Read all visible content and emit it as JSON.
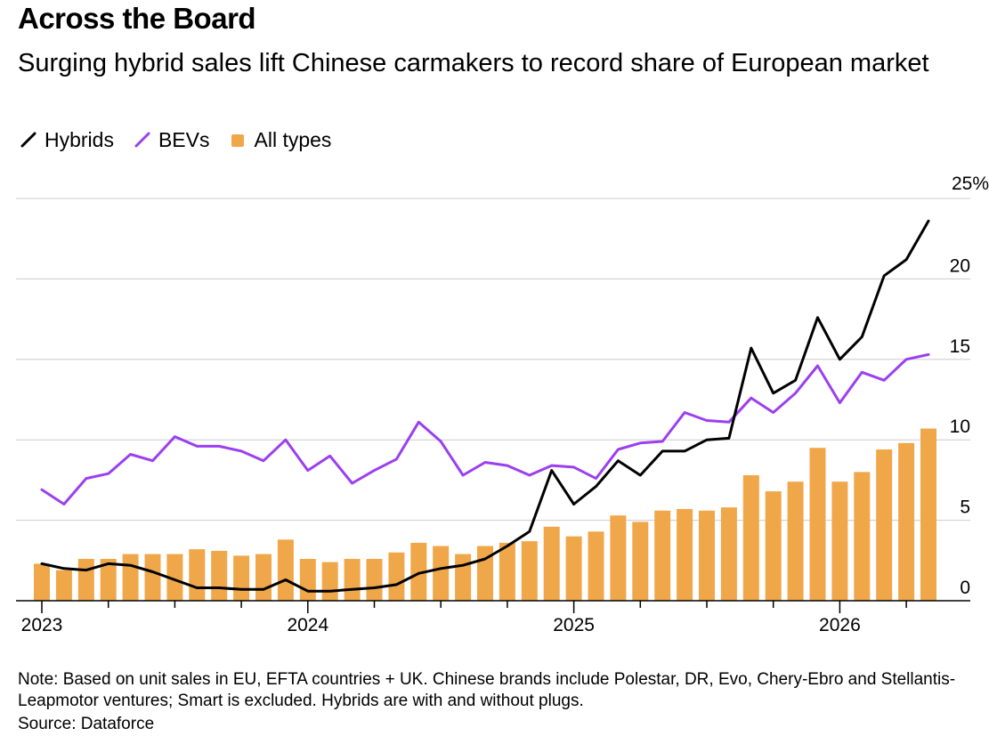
{
  "title": "Across the Board",
  "subtitle": "Surging hybrid sales lift Chinese carmakers to record share of European market",
  "legend": [
    {
      "label": "Hybrids",
      "color": "#000000",
      "shape": "line"
    },
    {
      "label": "BEVs",
      "color": "#9b3ff0",
      "shape": "line"
    },
    {
      "label": "All types",
      "color": "#f0a74a",
      "shape": "square"
    }
  ],
  "note": "Note: Based on unit sales in EU, EFTA countries + UK. Chinese brands include Polestar, DR, Evo, Chery-Ebro and Stellantis-Leapmotor ventures; Smart is excluded. Hybrids are with and without plugs.",
  "source": "Source: Dataforce",
  "chart_data": {
    "type": "bar+line",
    "x": [
      "2023-01",
      "2023-02",
      "2023-03",
      "2023-04",
      "2023-05",
      "2023-06",
      "2023-07",
      "2023-08",
      "2023-09",
      "2023-10",
      "2023-11",
      "2023-12",
      "2024-01",
      "2024-02",
      "2024-03",
      "2024-04",
      "2024-05",
      "2024-06",
      "2024-07",
      "2024-08",
      "2024-09",
      "2024-10",
      "2024-11",
      "2024-12",
      "2025-01",
      "2025-02",
      "2025-03",
      "2025-04",
      "2025-05",
      "2025-06",
      "2025-07",
      "2025-08",
      "2025-09",
      "2025-10",
      "2025-11",
      "2025-12",
      "2026-01",
      "2026-02",
      "2026-03",
      "2026-04",
      "2026-05"
    ],
    "x_ticks": [
      {
        "label": "2023",
        "x": "2023-01"
      },
      {
        "label": "2024",
        "x": "2024-01"
      },
      {
        "label": "2025",
        "x": "2025-01"
      },
      {
        "label": "2026",
        "x": "2026-01"
      }
    ],
    "y_ticks": [
      "0",
      "5",
      "10",
      "15",
      "20",
      "25%"
    ],
    "y_tick_values": [
      0,
      5,
      10,
      15,
      20,
      25
    ],
    "ylim": [
      0,
      25
    ],
    "y_axis_position": "right",
    "grid": true,
    "legend_position": "top-left",
    "series": [
      {
        "name": "All types",
        "type": "bar",
        "color": "#f0a74a",
        "values": [
          2.3,
          1.9,
          2.6,
          2.6,
          2.9,
          2.9,
          2.9,
          3.2,
          3.1,
          2.8,
          2.9,
          3.8,
          2.6,
          2.4,
          2.6,
          2.6,
          3.0,
          3.6,
          3.4,
          2.9,
          3.4,
          3.6,
          3.7,
          4.6,
          4.0,
          4.3,
          5.3,
          4.9,
          5.6,
          5.7,
          5.6,
          5.8,
          7.8,
          6.8,
          7.4,
          9.5,
          7.4,
          8.0,
          9.4,
          9.8,
          10.7
        ]
      },
      {
        "name": "BEVs",
        "type": "line",
        "color": "#9b3ff0",
        "values": [
          6.9,
          6.0,
          7.6,
          7.9,
          9.1,
          8.7,
          10.2,
          9.6,
          9.6,
          9.3,
          8.7,
          10.0,
          8.1,
          9.0,
          7.3,
          8.1,
          8.8,
          11.1,
          9.9,
          7.8,
          8.6,
          8.4,
          7.8,
          8.4,
          8.3,
          7.6,
          9.4,
          9.8,
          9.9,
          11.7,
          11.2,
          11.1,
          12.6,
          11.7,
          12.9,
          14.6,
          12.3,
          14.2,
          13.7,
          15.0,
          15.3
        ]
      },
      {
        "name": "Hybrids",
        "type": "line",
        "color": "#000000",
        "values": [
          2.3,
          2.0,
          1.9,
          2.3,
          2.2,
          1.8,
          1.3,
          0.8,
          0.8,
          0.7,
          0.7,
          1.3,
          0.6,
          0.6,
          0.7,
          0.8,
          1.0,
          1.7,
          2.0,
          2.2,
          2.6,
          3.4,
          4.3,
          8.1,
          6.0,
          7.1,
          8.7,
          7.8,
          9.3,
          9.3,
          10.0,
          10.1,
          15.7,
          12.9,
          13.7,
          17.6,
          15.0,
          16.4,
          20.2,
          21.2,
          23.6
        ]
      }
    ]
  }
}
